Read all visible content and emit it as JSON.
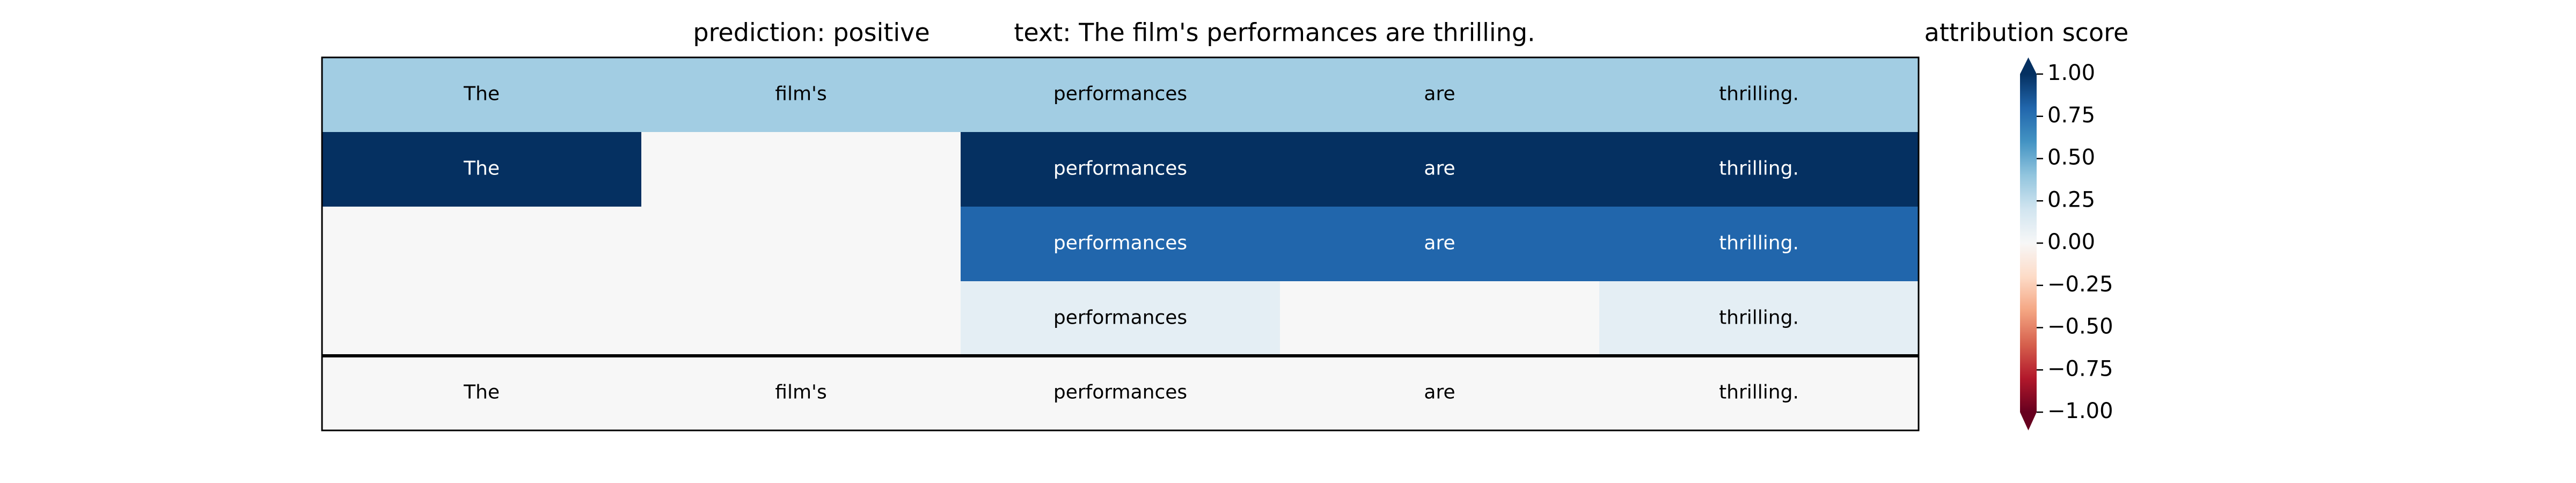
{
  "chart_data": {
    "type": "heatmap",
    "prediction_label": "prediction:  positive",
    "title": "text:  The film's performances are thrilling.",
    "colorbar_label": "attribution score",
    "colormap": "RdBu",
    "clim": [
      -1,
      1
    ],
    "separator_before_row": 4,
    "rows": [
      {
        "tokens": [
          "The",
          "film's",
          "performances",
          "are",
          "thrilling."
        ],
        "values": [
          0.35,
          0.35,
          0.35,
          0.35,
          0.35
        ]
      },
      {
        "tokens": [
          "The",
          null,
          "performances",
          "are",
          "thrilling."
        ],
        "values": [
          1.0,
          0,
          1.0,
          1.0,
          1.0
        ]
      },
      {
        "tokens": [
          null,
          null,
          "performances",
          "are",
          "thrilling."
        ],
        "values": [
          0,
          0,
          0.8,
          0.8,
          0.8
        ]
      },
      {
        "tokens": [
          null,
          null,
          "performances",
          null,
          "thrilling."
        ],
        "values": [
          0,
          0,
          0.1,
          0,
          0.1
        ]
      },
      {
        "tokens": [
          "The",
          "film's",
          "performances",
          "are",
          "thrilling."
        ],
        "values": [
          0,
          0,
          0,
          0,
          0
        ]
      }
    ],
    "colorbar_ticks": [
      {
        "value": 1.0,
        "label": "1.00"
      },
      {
        "value": 0.75,
        "label": "0.75"
      },
      {
        "value": 0.5,
        "label": "0.50"
      },
      {
        "value": 0.25,
        "label": "0.25"
      },
      {
        "value": 0,
        "label": "0.00"
      },
      {
        "value": -0.25,
        "label": "−0.25"
      },
      {
        "value": -0.5,
        "label": "−0.50"
      },
      {
        "value": -0.75,
        "label": "−0.75"
      },
      {
        "value": -1.0,
        "label": "−1.00"
      }
    ]
  }
}
